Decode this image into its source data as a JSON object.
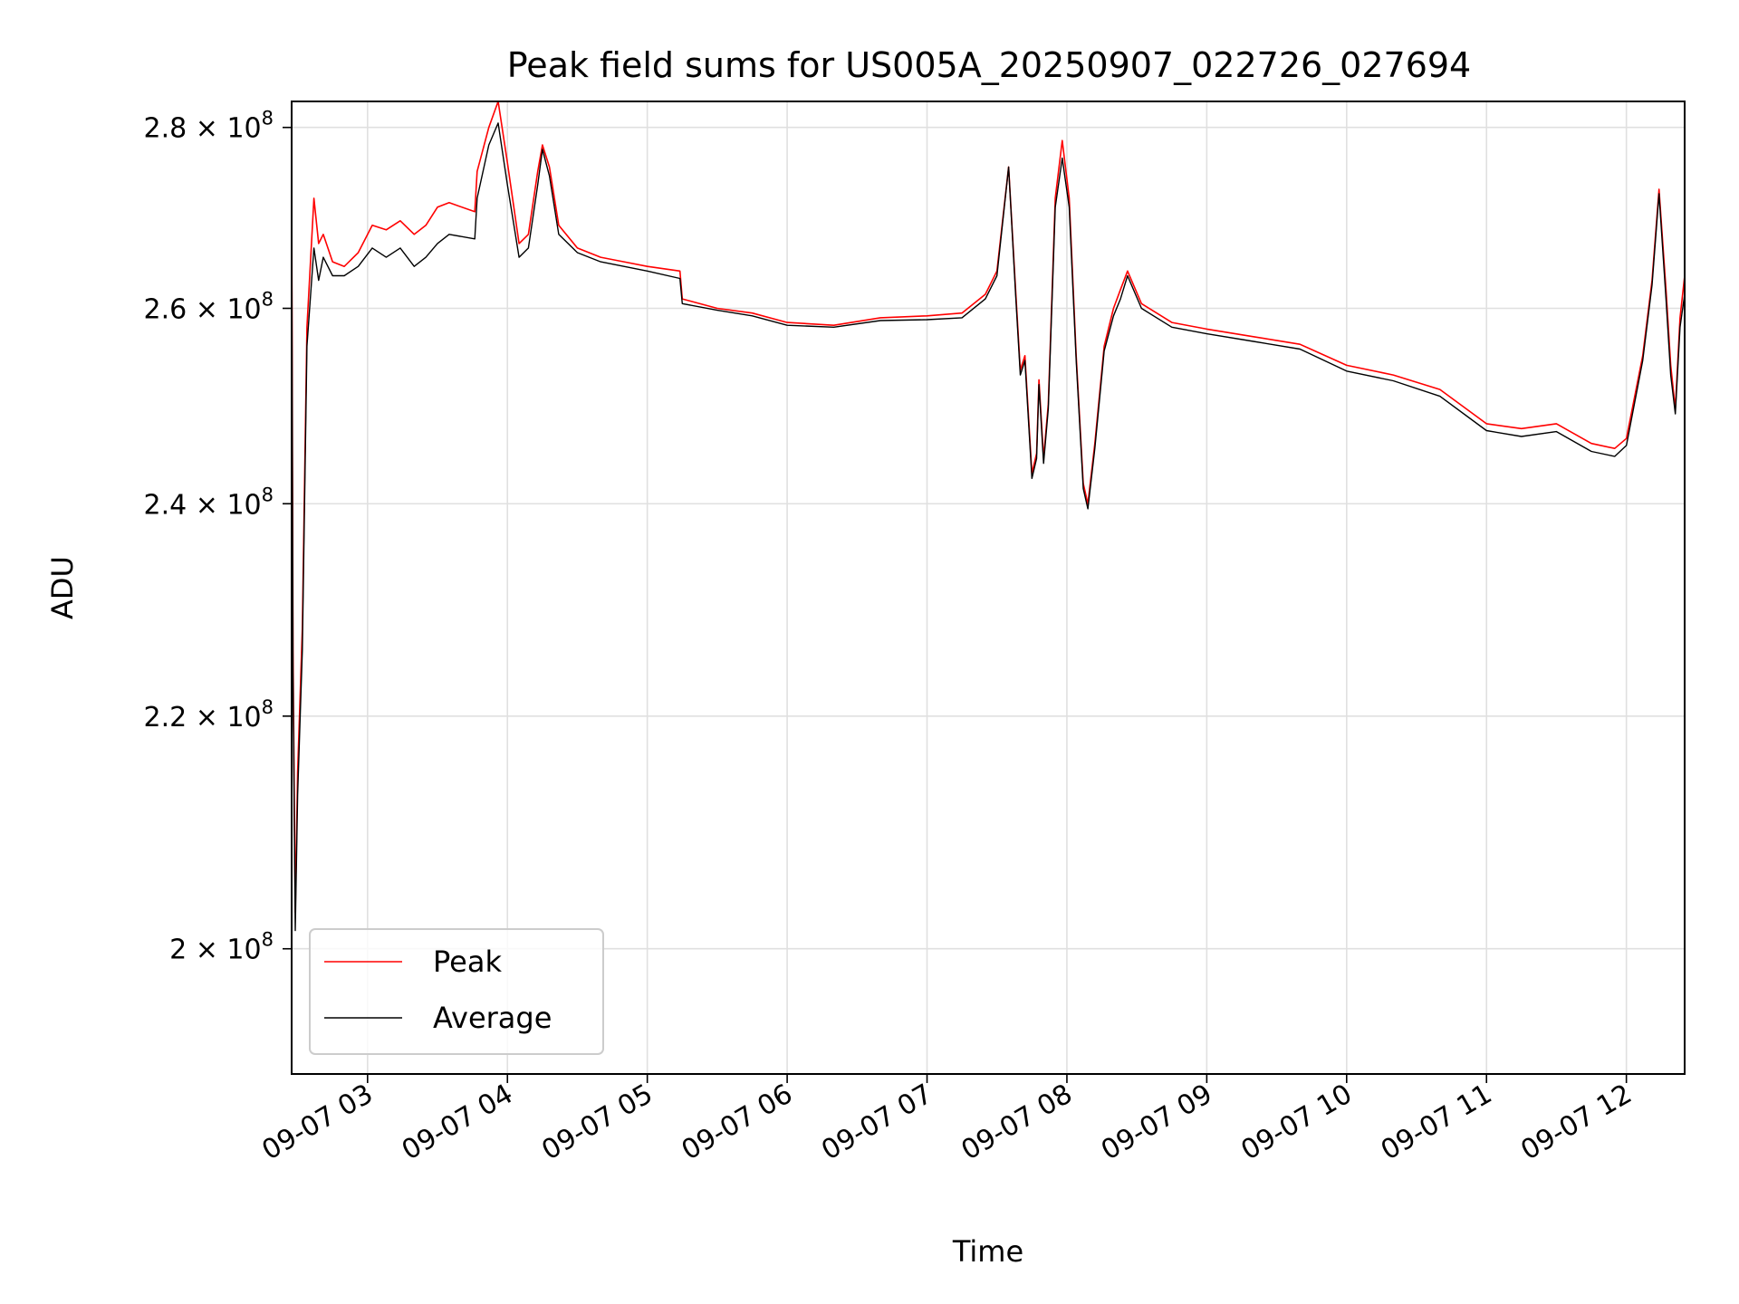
{
  "chart_data": {
    "type": "line",
    "title": "Peak field sums for US005A_20250907_022726_027694",
    "xlabel": "Time",
    "ylabel": "ADU",
    "y_scale": "log",
    "xlim": [
      "2025-09-07T02:27:26",
      "2025-09-07T12:25:00"
    ],
    "ylim": [
      190000000,
      283000000
    ],
    "x_ticks": [
      "2025-09-07T03:00",
      "2025-09-07T04:00",
      "2025-09-07T05:00",
      "2025-09-07T06:00",
      "2025-09-07T07:00",
      "2025-09-07T08:00",
      "2025-09-07T09:00",
      "2025-09-07T10:00",
      "2025-09-07T11:00",
      "2025-09-07T12:00"
    ],
    "x_tick_labels": [
      "09-07 03",
      "09-07 04",
      "09-07 05",
      "09-07 06",
      "09-07 07",
      "09-07 08",
      "09-07 09",
      "09-07 10",
      "09-07 11",
      "09-07 12"
    ],
    "y_ticks": [
      200000000,
      220000000,
      240000000,
      260000000,
      280000000
    ],
    "y_tick_labels": [
      {
        "mant": "2",
        "exp": "8"
      },
      {
        "mant": "2.2",
        "exp": "8"
      },
      {
        "mant": "2.4",
        "exp": "8"
      },
      {
        "mant": "2.6",
        "exp": "8"
      },
      {
        "mant": "2.8",
        "exp": "8"
      }
    ],
    "grid": true,
    "legend_position": "lower-left",
    "series": [
      {
        "name": "Peak",
        "color": "#ff0000",
        "points": [
          [
            "2025-09-07T02:27:30",
            268000000
          ],
          [
            "2025-09-07T02:28:00",
            226000000
          ],
          [
            "2025-09-07T02:29:00",
            203000000
          ],
          [
            "2025-09-07T02:30:00",
            215000000
          ],
          [
            "2025-09-07T02:32:00",
            228000000
          ],
          [
            "2025-09-07T02:34:00",
            258000000
          ],
          [
            "2025-09-07T02:37:00",
            272000000
          ],
          [
            "2025-09-07T02:39:00",
            267000000
          ],
          [
            "2025-09-07T02:41:00",
            268000000
          ],
          [
            "2025-09-07T02:45:00",
            265000000
          ],
          [
            "2025-09-07T02:50:00",
            264500000
          ],
          [
            "2025-09-07T02:56:00",
            266000000
          ],
          [
            "2025-09-07T03:02:00",
            269000000
          ],
          [
            "2025-09-07T03:08:00",
            268500000
          ],
          [
            "2025-09-07T03:14:00",
            269500000
          ],
          [
            "2025-09-07T03:20:00",
            268000000
          ],
          [
            "2025-09-07T03:25:00",
            269000000
          ],
          [
            "2025-09-07T03:30:00",
            271000000
          ],
          [
            "2025-09-07T03:35:00",
            271500000
          ],
          [
            "2025-09-07T03:46:00",
            270500000
          ],
          [
            "2025-09-07T03:47:00",
            275000000
          ],
          [
            "2025-09-07T03:52:00",
            280000000
          ],
          [
            "2025-09-07T03:56:00",
            283000000
          ],
          [
            "2025-09-07T04:00:00",
            276000000
          ],
          [
            "2025-09-07T04:05:00",
            267000000
          ],
          [
            "2025-09-07T04:09:00",
            268000000
          ],
          [
            "2025-09-07T04:13:00",
            275000000
          ],
          [
            "2025-09-07T04:15:00",
            278000000
          ],
          [
            "2025-09-07T04:18:00",
            275500000
          ],
          [
            "2025-09-07T04:22:00",
            269000000
          ],
          [
            "2025-09-07T04:30:00",
            266500000
          ],
          [
            "2025-09-07T04:40:00",
            265500000
          ],
          [
            "2025-09-07T04:50:00",
            265000000
          ],
          [
            "2025-09-07T05:00:00",
            264500000
          ],
          [
            "2025-09-07T05:14:00",
            264000000
          ],
          [
            "2025-09-07T05:15:00",
            261000000
          ],
          [
            "2025-09-07T05:30:00",
            260000000
          ],
          [
            "2025-09-07T05:45:00",
            259500000
          ],
          [
            "2025-09-07T06:00:00",
            258500000
          ],
          [
            "2025-09-07T06:20:00",
            258200000
          ],
          [
            "2025-09-07T06:40:00",
            259000000
          ],
          [
            "2025-09-07T07:00:00",
            259200000
          ],
          [
            "2025-09-07T07:15:00",
            259500000
          ],
          [
            "2025-09-07T07:25:00",
            261500000
          ],
          [
            "2025-09-07T07:30:00",
            264000000
          ],
          [
            "2025-09-07T07:35:00",
            275500000
          ],
          [
            "2025-09-07T07:38:00",
            262000000
          ],
          [
            "2025-09-07T07:40:00",
            253500000
          ],
          [
            "2025-09-07T07:42:00",
            255000000
          ],
          [
            "2025-09-07T07:45:00",
            243000000
          ],
          [
            "2025-09-07T07:47:00",
            245000000
          ],
          [
            "2025-09-07T07:48:00",
            252500000
          ],
          [
            "2025-09-07T07:50:00",
            244500000
          ],
          [
            "2025-09-07T07:52:00",
            250000000
          ],
          [
            "2025-09-07T07:55:00",
            272000000
          ],
          [
            "2025-09-07T07:58:00",
            278500000
          ],
          [
            "2025-09-07T08:01:00",
            272000000
          ],
          [
            "2025-09-07T08:04:00",
            255000000
          ],
          [
            "2025-09-07T08:07:00",
            242000000
          ],
          [
            "2025-09-07T08:09:00",
            240000000
          ],
          [
            "2025-09-07T08:12:00",
            246000000
          ],
          [
            "2025-09-07T08:16:00",
            256000000
          ],
          [
            "2025-09-07T08:20:00",
            260000000
          ],
          [
            "2025-09-07T08:23:00",
            262000000
          ],
          [
            "2025-09-07T08:26:00",
            264000000
          ],
          [
            "2025-09-07T08:32:00",
            260500000
          ],
          [
            "2025-09-07T08:45:00",
            258500000
          ],
          [
            "2025-09-07T09:00:00",
            257800000
          ],
          [
            "2025-09-07T09:20:00",
            257000000
          ],
          [
            "2025-09-07T09:40:00",
            256200000
          ],
          [
            "2025-09-07T10:00:00",
            254000000
          ],
          [
            "2025-09-07T10:20:00",
            253000000
          ],
          [
            "2025-09-07T10:40:00",
            251500000
          ],
          [
            "2025-09-07T11:00:00",
            248000000
          ],
          [
            "2025-09-07T11:15:00",
            247500000
          ],
          [
            "2025-09-07T11:30:00",
            248000000
          ],
          [
            "2025-09-07T11:45:00",
            246000000
          ],
          [
            "2025-09-07T11:55:00",
            245500000
          ],
          [
            "2025-09-07T12:00:00",
            246500000
          ],
          [
            "2025-09-07T12:07:00",
            255000000
          ],
          [
            "2025-09-07T12:11:00",
            263000000
          ],
          [
            "2025-09-07T12:14:00",
            273000000
          ],
          [
            "2025-09-07T12:17:00",
            262000000
          ],
          [
            "2025-09-07T12:19:00",
            254000000
          ],
          [
            "2025-09-07T12:21:00",
            249500000
          ],
          [
            "2025-09-07T12:23:00",
            259000000
          ],
          [
            "2025-09-07T12:25:00",
            263500000
          ]
        ]
      },
      {
        "name": "Average",
        "color": "#000000",
        "points": [
          [
            "2025-09-07T02:27:30",
            266000000
          ],
          [
            "2025-09-07T02:28:00",
            224000000
          ],
          [
            "2025-09-07T02:29:00",
            201500000
          ],
          [
            "2025-09-07T02:30:00",
            213000000
          ],
          [
            "2025-09-07T02:32:00",
            226000000
          ],
          [
            "2025-09-07T02:34:00",
            256000000
          ],
          [
            "2025-09-07T02:37:00",
            266500000
          ],
          [
            "2025-09-07T02:39:00",
            263000000
          ],
          [
            "2025-09-07T02:41:00",
            265500000
          ],
          [
            "2025-09-07T02:45:00",
            263500000
          ],
          [
            "2025-09-07T02:50:00",
            263500000
          ],
          [
            "2025-09-07T02:56:00",
            264500000
          ],
          [
            "2025-09-07T03:02:00",
            266500000
          ],
          [
            "2025-09-07T03:08:00",
            265500000
          ],
          [
            "2025-09-07T03:14:00",
            266500000
          ],
          [
            "2025-09-07T03:20:00",
            264500000
          ],
          [
            "2025-09-07T03:25:00",
            265500000
          ],
          [
            "2025-09-07T03:30:00",
            267000000
          ],
          [
            "2025-09-07T03:35:00",
            268000000
          ],
          [
            "2025-09-07T03:46:00",
            267500000
          ],
          [
            "2025-09-07T03:47:00",
            272000000
          ],
          [
            "2025-09-07T03:52:00",
            278000000
          ],
          [
            "2025-09-07T03:56:00",
            280500000
          ],
          [
            "2025-09-07T04:00:00",
            273500000
          ],
          [
            "2025-09-07T04:05:00",
            265500000
          ],
          [
            "2025-09-07T04:09:00",
            266500000
          ],
          [
            "2025-09-07T04:13:00",
            273500000
          ],
          [
            "2025-09-07T04:15:00",
            277500000
          ],
          [
            "2025-09-07T04:18:00",
            274500000
          ],
          [
            "2025-09-07T04:22:00",
            268000000
          ],
          [
            "2025-09-07T04:30:00",
            266000000
          ],
          [
            "2025-09-07T04:40:00",
            265000000
          ],
          [
            "2025-09-07T04:50:00",
            264500000
          ],
          [
            "2025-09-07T05:00:00",
            264000000
          ],
          [
            "2025-09-07T05:14:00",
            263200000
          ],
          [
            "2025-09-07T05:15:00",
            260500000
          ],
          [
            "2025-09-07T05:30:00",
            259800000
          ],
          [
            "2025-09-07T05:45:00",
            259200000
          ],
          [
            "2025-09-07T06:00:00",
            258200000
          ],
          [
            "2025-09-07T06:20:00",
            258000000
          ],
          [
            "2025-09-07T06:40:00",
            258700000
          ],
          [
            "2025-09-07T07:00:00",
            258800000
          ],
          [
            "2025-09-07T07:15:00",
            259000000
          ],
          [
            "2025-09-07T07:25:00",
            261000000
          ],
          [
            "2025-09-07T07:30:00",
            263500000
          ],
          [
            "2025-09-07T07:35:00",
            275500000
          ],
          [
            "2025-09-07T07:38:00",
            261500000
          ],
          [
            "2025-09-07T07:40:00",
            253000000
          ],
          [
            "2025-09-07T07:42:00",
            254500000
          ],
          [
            "2025-09-07T07:45:00",
            242500000
          ],
          [
            "2025-09-07T07:47:00",
            244500000
          ],
          [
            "2025-09-07T07:48:00",
            252000000
          ],
          [
            "2025-09-07T07:50:00",
            244000000
          ],
          [
            "2025-09-07T07:52:00",
            249500000
          ],
          [
            "2025-09-07T07:55:00",
            271000000
          ],
          [
            "2025-09-07T07:58:00",
            276500000
          ],
          [
            "2025-09-07T08:01:00",
            271000000
          ],
          [
            "2025-09-07T08:04:00",
            254500000
          ],
          [
            "2025-09-07T08:07:00",
            241500000
          ],
          [
            "2025-09-07T08:09:00",
            239500000
          ],
          [
            "2025-09-07T08:12:00",
            245500000
          ],
          [
            "2025-09-07T08:16:00",
            255500000
          ],
          [
            "2025-09-07T08:20:00",
            259200000
          ],
          [
            "2025-09-07T08:23:00",
            261000000
          ],
          [
            "2025-09-07T08:26:00",
            263500000
          ],
          [
            "2025-09-07T08:32:00",
            260000000
          ],
          [
            "2025-09-07T08:45:00",
            258000000
          ],
          [
            "2025-09-07T09:00:00",
            257300000
          ],
          [
            "2025-09-07T09:20:00",
            256500000
          ],
          [
            "2025-09-07T09:40:00",
            255700000
          ],
          [
            "2025-09-07T10:00:00",
            253400000
          ],
          [
            "2025-09-07T10:20:00",
            252400000
          ],
          [
            "2025-09-07T10:40:00",
            250800000
          ],
          [
            "2025-09-07T11:00:00",
            247300000
          ],
          [
            "2025-09-07T11:15:00",
            246700000
          ],
          [
            "2025-09-07T11:30:00",
            247200000
          ],
          [
            "2025-09-07T11:45:00",
            245200000
          ],
          [
            "2025-09-07T11:55:00",
            244700000
          ],
          [
            "2025-09-07T12:00:00",
            245800000
          ],
          [
            "2025-09-07T12:07:00",
            254500000
          ],
          [
            "2025-09-07T12:11:00",
            262500000
          ],
          [
            "2025-09-07T12:14:00",
            272500000
          ],
          [
            "2025-09-07T12:17:00",
            261000000
          ],
          [
            "2025-09-07T12:19:00",
            253000000
          ],
          [
            "2025-09-07T12:21:00",
            249000000
          ],
          [
            "2025-09-07T12:23:00",
            258000000
          ],
          [
            "2025-09-07T12:25:00",
            261500000
          ]
        ]
      }
    ]
  }
}
